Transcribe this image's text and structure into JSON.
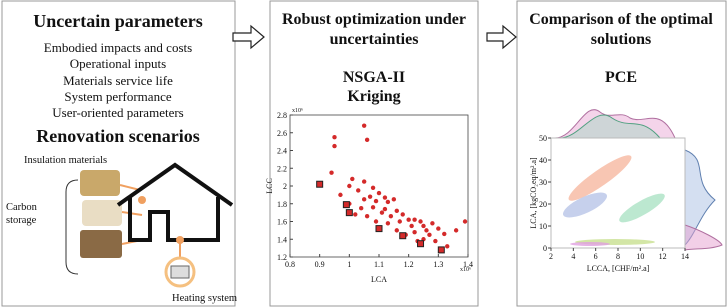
{
  "panel_left": {
    "title": "Uncertain parameters",
    "items": [
      "Embodied impacts and costs",
      "Operational inputs",
      "Materials service life",
      "System performance",
      "User-oriented parameters"
    ],
    "subtitle": "Renovation scenarios",
    "insulation_label": "Insulation materials",
    "carbon_label": [
      "Carbon",
      "storage"
    ],
    "heating_label": "Heating system"
  },
  "panel_middle": {
    "title": [
      "Robust optimization under",
      "uncertainties"
    ],
    "method_1": "NSGA-II",
    "method_2": "Kriging",
    "plot": {
      "x_label": "LCA",
      "y_label": "LCC",
      "x_exponent": "x10⁶",
      "y_exponent": "x10⁶",
      "xlim": [
        0.8,
        1.4
      ],
      "ylim": [
        1.2,
        2.8
      ],
      "xticks": [
        0.8,
        0.9,
        1,
        1.1,
        1.2,
        1.3,
        1.4
      ],
      "yticks": [
        1.2,
        1.4,
        1.6,
        1.8,
        2,
        2.2,
        2.4,
        2.6,
        2.8
      ],
      "points": {
        "x": [
          0.95,
          0.95,
          0.94,
          1.05,
          1.06,
          1.01,
          1.05,
          1.0,
          1.03,
          0.97,
          1.08,
          1.1,
          1.07,
          1.12,
          1.05,
          1.09,
          1.13,
          1.15,
          1.0,
          1.04,
          1.08,
          1.12,
          1.16,
          1.11,
          1.02,
          1.06,
          1.14,
          1.18,
          1.2,
          1.17,
          1.22,
          1.24,
          1.13,
          1.09,
          1.21,
          1.25,
          1.28,
          1.3,
          1.26,
          1.22,
          1.16,
          1.19,
          1.27,
          1.32,
          1.36,
          1.39,
          1.25,
          1.29,
          1.33,
          1.23
        ],
        "y": [
          2.45,
          2.55,
          2.15,
          2.68,
          2.52,
          2.08,
          2.05,
          2.0,
          1.95,
          1.9,
          1.98,
          1.92,
          1.88,
          1.87,
          1.85,
          1.83,
          1.82,
          1.85,
          1.8,
          1.75,
          1.76,
          1.74,
          1.72,
          1.7,
          1.68,
          1.66,
          1.66,
          1.68,
          1.62,
          1.6,
          1.62,
          1.6,
          1.58,
          1.6,
          1.55,
          1.55,
          1.58,
          1.52,
          1.5,
          1.48,
          1.5,
          1.45,
          1.45,
          1.46,
          1.5,
          1.6,
          1.4,
          1.38,
          1.32,
          1.38
        ]
      },
      "selected": {
        "x": [
          0.9,
          0.99,
          1.0,
          1.1,
          1.18,
          1.24,
          1.31
        ],
        "y": [
          2.02,
          1.79,
          1.7,
          1.52,
          1.44,
          1.35,
          1.28
        ]
      }
    }
  },
  "panel_right": {
    "title": [
      "Comparison of the optimal",
      "solutions"
    ],
    "method": "PCE",
    "plot": {
      "x_label": "LCCA, [CHF/m².a]",
      "y_label": "LCA, [kgCO₂eq/m².a]",
      "xlim": [
        2,
        14
      ],
      "ylim": [
        0,
        50
      ],
      "xticks": [
        2,
        4,
        6,
        8,
        10,
        12,
        14
      ],
      "yticks": [
        0,
        10,
        20,
        30,
        40,
        50
      ]
    }
  }
}
